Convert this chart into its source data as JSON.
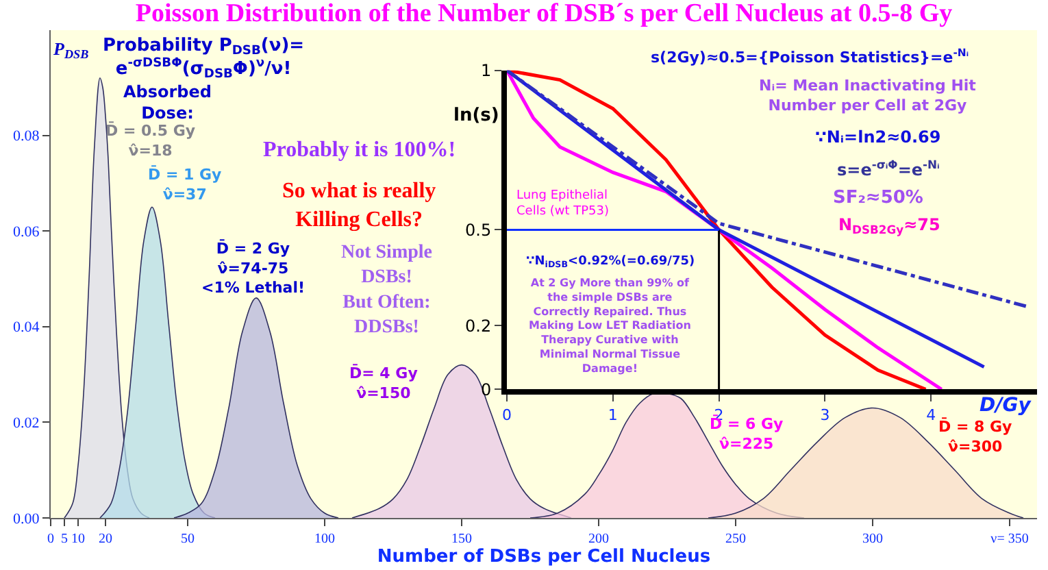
{
  "chart_data": [
    {
      "type": "area",
      "title": "Poisson Distribution of the Number of DSB´s per Cell Nucleus at 0.5-8 Gy",
      "xlabel": "Number of DSBs per Cell Nucleus",
      "ylabel": "P$_{DSB}$",
      "xlim": [
        0,
        360
      ],
      "xticks": [
        0,
        5,
        10,
        20,
        50,
        100,
        150,
        200,
        250,
        300,
        {
          "value": 350,
          "label": "ν= 350"
        }
      ],
      "ylim": [
        0,
        0.102
      ],
      "yticks": [
        {
          "value": 0,
          "label": "0.00"
        },
        {
          "value": 0.02,
          "label": "0.02"
        },
        {
          "value": 0.04,
          "label": "0.04"
        },
        {
          "value": 0.06,
          "label": "0.06"
        },
        {
          "value": 0.08,
          "label": "0.08"
        }
      ],
      "legend": false,
      "annotations": [
        "Probability P$_{DSB}$(ν)=\ne$^{-σDSBΦ}$(σ$_{DSB}$Φ)$^{ν}$/ν!",
        "Absorbed\nDose:",
        "Probably it is 100%!",
        "So what is really\nKilling Cells?",
        "Not Simple\nDSBs!\nBut Often:\nDDSBs!"
      ],
      "series": [
        {
          "name": "D̄ = 0.5 Gy\nν̂=18",
          "color": "#dcdcec",
          "x": [
            5,
            8,
            10,
            12,
            14,
            16,
            18,
            19,
            20,
            21,
            22,
            24,
            26,
            28,
            30,
            33,
            36
          ],
          "values": [
            0.0,
            0.003,
            0.011,
            0.026,
            0.05,
            0.078,
            0.092,
            0.09,
            0.084,
            0.075,
            0.062,
            0.039,
            0.021,
            0.01,
            0.004,
            0.001,
            0.0
          ]
        },
        {
          "name": "D̄ = 1 Gy\nν̂=37",
          "color": "#b4dcea",
          "x": [
            18,
            22,
            25,
            28,
            31,
            34,
            37,
            40,
            43,
            46,
            49,
            52,
            56,
            60
          ],
          "values": [
            0.0,
            0.003,
            0.01,
            0.022,
            0.04,
            0.058,
            0.065,
            0.058,
            0.041,
            0.024,
            0.012,
            0.005,
            0.001,
            0.0
          ]
        },
        {
          "name": "D̄ = 2 Gy\nν̂=74-75\n<1% Lethal!",
          "color": "#b6b6de",
          "x": [
            45,
            50,
            55,
            60,
            65,
            70,
            75,
            80,
            85,
            90,
            95,
            100,
            105
          ],
          "values": [
            0.0,
            0.001,
            0.003,
            0.01,
            0.023,
            0.039,
            0.046,
            0.039,
            0.024,
            0.011,
            0.004,
            0.001,
            0.0
          ]
        },
        {
          "name": "D̄= 4 Gy\nν̂=150",
          "color": "#e8c8e8",
          "x": [
            110,
            120,
            125,
            130,
            135,
            140,
            145,
            150,
            155,
            160,
            165,
            170,
            175,
            180,
            190
          ],
          "values": [
            0.0,
            0.002,
            0.004,
            0.008,
            0.015,
            0.023,
            0.03,
            0.032,
            0.03,
            0.023,
            0.015,
            0.008,
            0.004,
            0.002,
            0.0
          ]
        },
        {
          "name": "D̄ = 6 Gy\nν̂=225",
          "color": "#f8cadf",
          "x": [
            175,
            185,
            195,
            200,
            205,
            210,
            215,
            220,
            225,
            230,
            235,
            240,
            245,
            250,
            255,
            265,
            275
          ],
          "values": [
            0.0,
            0.001,
            0.005,
            0.009,
            0.014,
            0.02,
            0.024,
            0.026,
            0.026,
            0.025,
            0.021,
            0.016,
            0.011,
            0.007,
            0.004,
            0.001,
            0.0
          ]
        },
        {
          "name": "D̄ = 8 Gy\nν̂=300",
          "color": "#f8dccb",
          "x": [
            240,
            250,
            260,
            270,
            280,
            290,
            300,
            310,
            320,
            330,
            340,
            350,
            355
          ],
          "values": [
            0.0,
            0.001,
            0.004,
            0.01,
            0.016,
            0.021,
            0.023,
            0.021,
            0.016,
            0.01,
            0.004,
            0.001,
            0.0
          ]
        }
      ]
    },
    {
      "type": "line",
      "xlabel": "D/Gy",
      "ylabel": "ln(s)",
      "xlim": [
        0,
        5
      ],
      "xticks": [
        0,
        1,
        2,
        3,
        4
      ],
      "ylim": [
        0,
        1
      ],
      "yticks": [
        0,
        0.2,
        0.5,
        1
      ],
      "legend": false,
      "annotations": [
        "s(2Gy)≈0.5={Poisson Statistics}=e$^{-Nᵢ}$",
        "Nᵢ= Mean Inactivating Hit\nNumber per Cell at 2Gy",
        "∵Nᵢ=ln2≈0.69",
        "s=e$^{-σᵢΦ}$=e$^{-Nᵢ}$",
        "SF₂≈50%",
        "N$_{DSB2Gy}$≈75",
        "∵N$_{iDSB}$<0.92%(=0.69/75)",
        "At 2 Gy More than 99% of\nthe simple DSBs are Correctly\nRepaired. Thus Making Low LET\nRadiation Therapy Curative with\nMinimal Normal Tissue Damage!"
      ],
      "ref_lines": [
        {
          "axis": "x",
          "value": 2,
          "color": "#000000"
        },
        {
          "axis": "y",
          "value": 0.5,
          "color": "#1030ff"
        }
      ],
      "series": [
        {
          "color": "#ff0000",
          "x": [
            0,
            0.5,
            1,
            1.5,
            2,
            2.5,
            3,
            3.5,
            3.95
          ],
          "values": [
            1,
            0.97,
            0.88,
            0.72,
            0.5,
            0.32,
            0.17,
            0.06,
            0
          ]
        },
        {
          "name": "Lung Epithelial\nCells (wt TP53)",
          "color": "#ff00ff",
          "x": [
            0,
            0.25,
            0.5,
            1,
            1.5,
            2,
            2.5,
            3,
            3.5,
            4.1
          ],
          "values": [
            1,
            0.85,
            0.76,
            0.68,
            0.62,
            0.5,
            0.38,
            0.25,
            0.13,
            0
          ]
        },
        {
          "color": "#2020e0",
          "x": [
            0,
            2,
            4.5
          ],
          "values": [
            1,
            0.5,
            0.07
          ]
        },
        {
          "color": "#3030c0",
          "line_style": "dashed",
          "x": [
            0,
            2,
            4.9
          ],
          "values": [
            1,
            0.52,
            0.26
          ]
        }
      ]
    }
  ]
}
